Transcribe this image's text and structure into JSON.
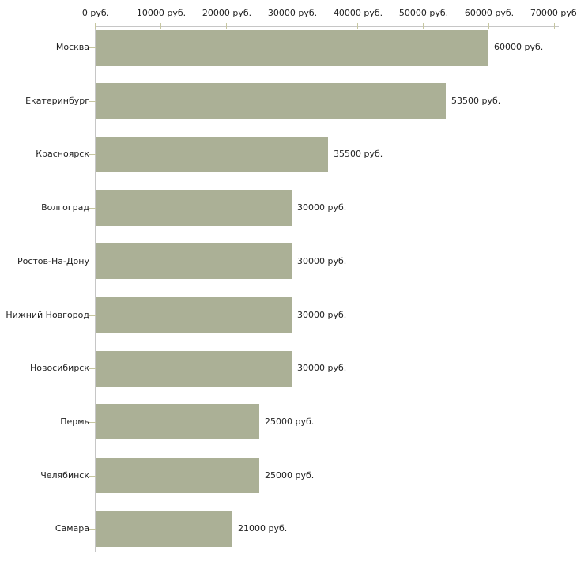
{
  "chart_data": {
    "type": "bar",
    "orientation": "horizontal",
    "categories": [
      "Москва",
      "Екатеринбург",
      "Красноярск",
      "Волгоград",
      "Ростов-На-Дону",
      "Нижний Новгород",
      "Новосибирск",
      "Пермь",
      "Челябинск",
      "Самара"
    ],
    "values": [
      60000,
      53500,
      35500,
      30000,
      30000,
      30000,
      30000,
      25000,
      25000,
      21000
    ],
    "value_labels": [
      "60000 руб.",
      "53500 руб.",
      "35500 руб.",
      "30000 руб.",
      "30000 руб.",
      "30000 руб.",
      "30000 руб.",
      "25000 руб.",
      "25000 руб.",
      "21000 руб."
    ],
    "unit": "руб.",
    "x_axis": {
      "position": "top",
      "min": 0,
      "max": 70000,
      "tick_interval": 10000,
      "tick_values": [
        0,
        10000,
        20000,
        30000,
        40000,
        50000,
        60000,
        70000
      ],
      "tick_labels": [
        "0 руб.",
        "10000 руб.",
        "20000 руб.",
        "30000 руб.",
        "40000 руб.",
        "50000 руб.",
        "60000 руб.",
        "70000 руб."
      ]
    },
    "grid": false,
    "legend": false,
    "colors": {
      "bar_fill": "#abb096",
      "axis_line": "#c6c6c6",
      "tick_mark": "#c6c6a0",
      "text": "#1f1f1f",
      "background": "#ffffff"
    }
  }
}
